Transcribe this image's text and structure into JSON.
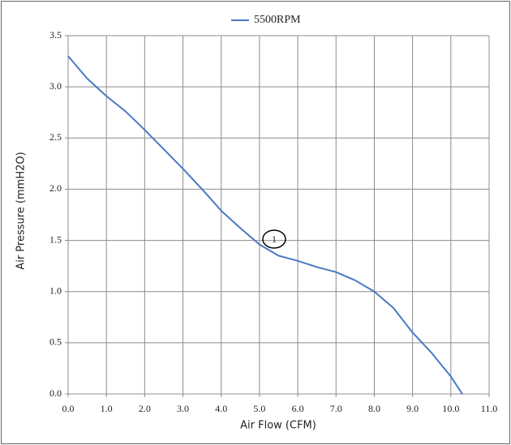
{
  "chart_data": {
    "type": "line",
    "x_label": "Air Flow (CFM)",
    "y_label": "Air Pressure (mmH2O)",
    "x": [
      0,
      0.5,
      1.0,
      1.5,
      2.0,
      2.5,
      3.0,
      3.5,
      4.0,
      4.5,
      5.0,
      5.5,
      6.0,
      6.5,
      7.0,
      7.5,
      8.0,
      8.5,
      9.0,
      9.5,
      10.0,
      10.3
    ],
    "series": [
      {
        "name": "5500RPM",
        "color": "#4a78c4",
        "values": [
          3.3,
          3.08,
          2.91,
          2.76,
          2.58,
          2.39,
          2.2,
          2.0,
          1.79,
          1.62,
          1.46,
          1.35,
          1.3,
          1.24,
          1.19,
          1.11,
          1.0,
          0.84,
          0.6,
          0.4,
          0.17,
          0
        ]
      }
    ],
    "xlim": [
      0,
      11
    ],
    "ylim": [
      0,
      3.5
    ],
    "xticks": [
      {
        "value": 0,
        "label": "0.0"
      },
      {
        "value": 1,
        "label": "1.0"
      },
      {
        "value": 2,
        "label": "2.0"
      },
      {
        "value": 3,
        "label": "3.0"
      },
      {
        "value": 4,
        "label": "4.0"
      },
      {
        "value": 5,
        "label": "5.0"
      },
      {
        "value": 6,
        "label": "6.0"
      },
      {
        "value": 7,
        "label": "7.0"
      },
      {
        "value": 8,
        "label": "8.0"
      },
      {
        "value": 9,
        "label": "9.0"
      },
      {
        "value": 10,
        "label": "10.0"
      },
      {
        "value": 11,
        "label": "11.0"
      }
    ],
    "yticks": [
      {
        "value": 0,
        "label": "0.0"
      },
      {
        "value": 0.5,
        "label": "0.5"
      },
      {
        "value": 1,
        "label": "1.0"
      },
      {
        "value": 1.5,
        "label": "1.5"
      },
      {
        "value": 2,
        "label": "2.0"
      },
      {
        "value": 2.5,
        "label": "2.5"
      },
      {
        "value": 3,
        "label": "3.0"
      },
      {
        "value": 3.5,
        "label": "3.5"
      }
    ],
    "grid": true,
    "legend": "top",
    "annotation": "1"
  }
}
